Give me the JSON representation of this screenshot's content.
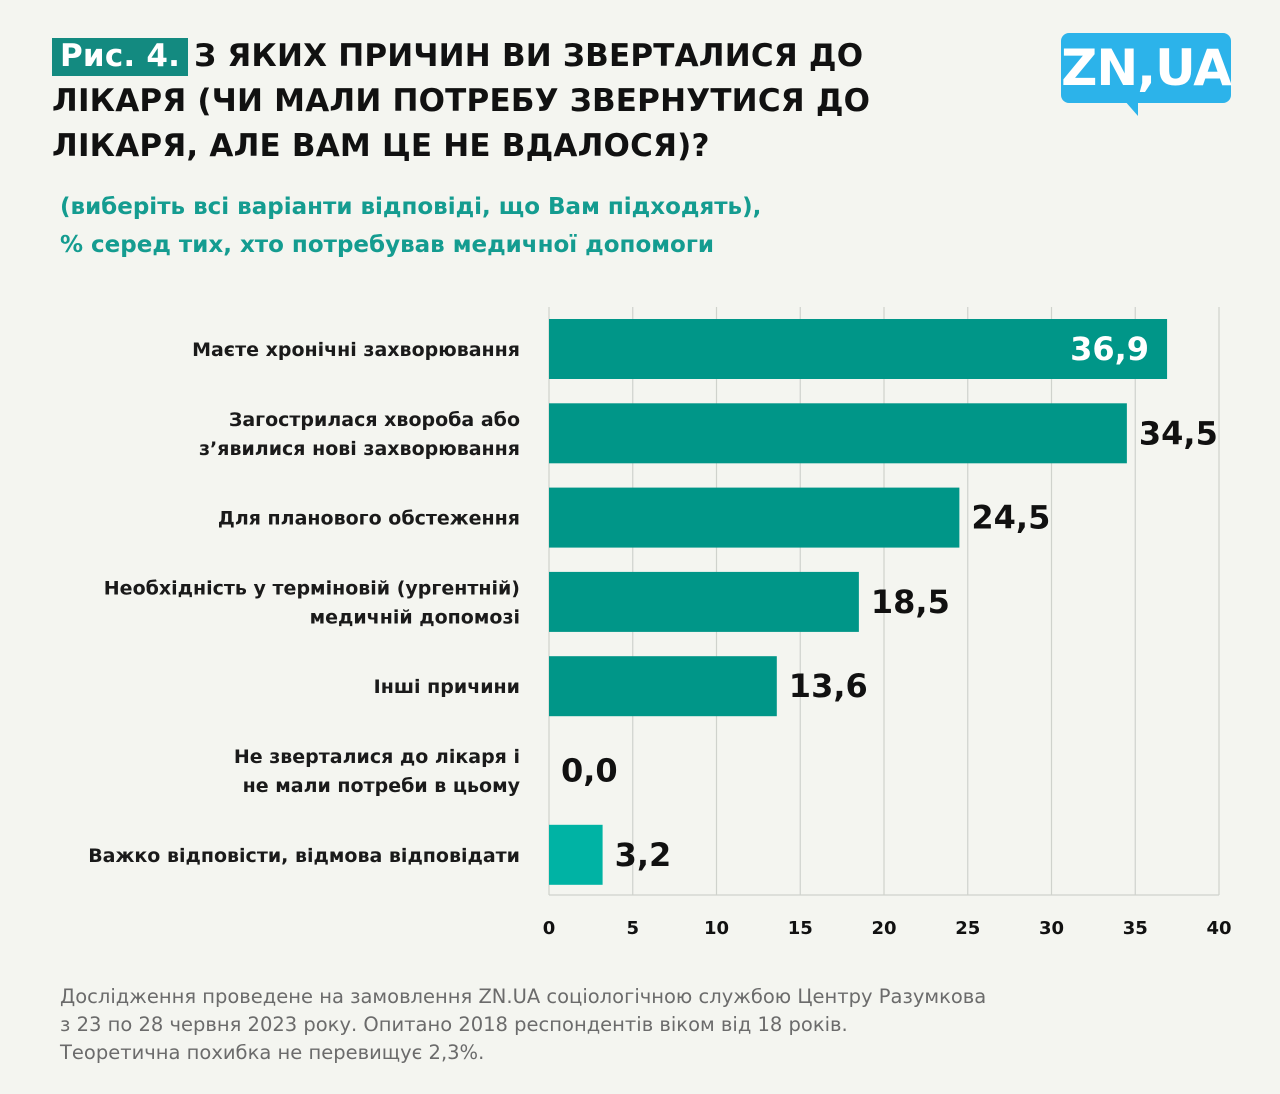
{
  "header": {
    "badge": "Рис. 4.",
    "title": "З ЯКИХ ПРИЧИН ВИ ЗВЕРТАЛИСЯ ДО ЛІКАРЯ (ЧИ МАЛИ ПОТРЕБУ ЗВЕРНУТИСЯ ДО ЛІКАРЯ, АЛЕ ВАМ ЦЕ НЕ ВДАЛОСЯ)?",
    "logo": "ZN,UA",
    "subtitle_line1": "(виберіть всі варіанти відповіді, що Вам підходять),",
    "subtitle_line2": "%  серед тих, хто потребував медичної допомоги"
  },
  "colors": {
    "bar": "#009688",
    "bar_light": "#00b3a4",
    "badge": "#138a80",
    "subtitle": "#149c90",
    "logo": "#2cb3ea",
    "grid": "#cfd2cc"
  },
  "chart_data": {
    "type": "bar",
    "orientation": "horizontal",
    "categories": [
      [
        "Маєте хронічні захворювання"
      ],
      [
        "Загострилася хвороба або",
        "з’явилися нові захворювання"
      ],
      [
        "Для планового обстеження"
      ],
      [
        "Необхідність у терміновій (ургентній)",
        "медичній допомозі"
      ],
      [
        "Інші причини"
      ],
      [
        "Не зверталися до лікаря і",
        "не мали потреби в цьому"
      ],
      [
        "Важко відповісти, відмова відповідати"
      ]
    ],
    "values": [
      36.9,
      34.5,
      24.5,
      18.5,
      13.6,
      0.0,
      3.2
    ],
    "value_labels": [
      "36,9",
      "34,5",
      "24,5",
      "18,5",
      "13,6",
      "0,0",
      "3,2"
    ],
    "xlim": [
      0,
      40
    ],
    "xticks": [
      0,
      5,
      10,
      15,
      20,
      25,
      30,
      35,
      40
    ],
    "xtick_labels": [
      "0",
      "5",
      "10",
      "15",
      "20",
      "25",
      "30",
      "35",
      "40"
    ],
    "grid": true,
    "title": "З ЯКИХ ПРИЧИН ВИ ЗВЕРТАЛИСЯ ДО ЛІКАРЯ (ЧИ МАЛИ ПОТРЕБУ ЗВЕРНУТИСЯ ДО ЛІКАРЯ, АЛЕ ВАМ ЦЕ НЕ ВДАЛОСЯ)?",
    "xlabel": "",
    "ylabel": ""
  },
  "footer": {
    "line1": "Дослідження проведене на замовлення ZN.UA соціологічною службою Центру Разумкова",
    "line2": "з 23 по 28 червня 2023 року. Опитано 2018 респондентів віком від 18 років.",
    "line3": "Теоретична похибка не перевищує 2,3%."
  }
}
